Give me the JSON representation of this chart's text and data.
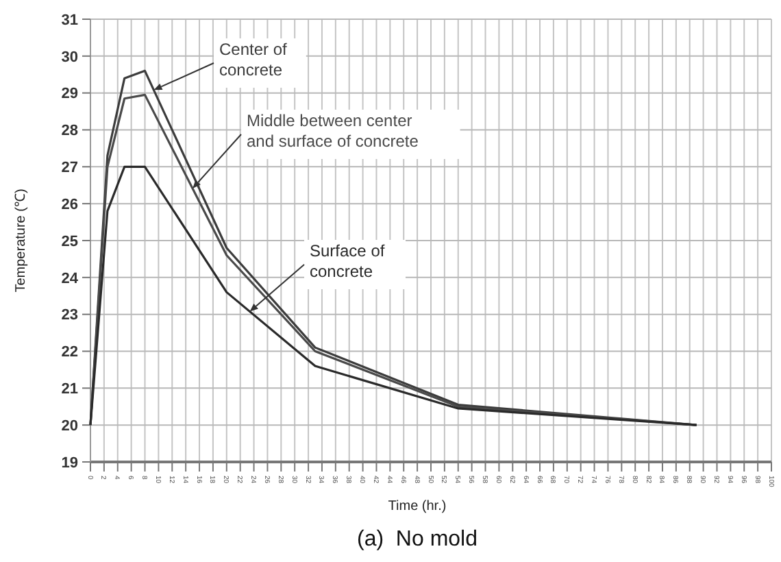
{
  "chart_data": {
    "type": "line",
    "title": "(a)  No mold",
    "xlabel": "Time (hr.)",
    "ylabel": "Temperature (℃)",
    "xlim": [
      0,
      100
    ],
    "xticks": [
      0,
      2,
      4,
      6,
      8,
      10,
      12,
      14,
      16,
      18,
      20,
      22,
      24,
      26,
      28,
      30,
      32,
      34,
      36,
      38,
      40,
      42,
      44,
      46,
      48,
      50,
      52,
      54,
      56,
      58,
      60,
      62,
      64,
      66,
      68,
      70,
      72,
      74,
      76,
      78,
      80,
      82,
      84,
      86,
      88,
      90,
      92,
      94,
      96,
      98,
      100
    ],
    "ylim": [
      19,
      31
    ],
    "yticks": [
      19,
      20,
      21,
      22,
      23,
      24,
      25,
      26,
      27,
      28,
      29,
      30,
      31
    ],
    "grid": true,
    "marker": "none",
    "x": [
      0,
      2.5,
      5,
      8,
      20,
      33,
      54,
      89
    ],
    "series": [
      {
        "name": "Center of concrete",
        "color": "#3c3c3c",
        "values": [
          20,
          27.3,
          29.4,
          29.6,
          24.8,
          22.1,
          20.55,
          20.0
        ]
      },
      {
        "name": "Middle between center and surface of concrete",
        "color": "#4a4a4a",
        "values": [
          20,
          27.0,
          28.85,
          28.95,
          24.6,
          22.0,
          20.5,
          20.0
        ]
      },
      {
        "name": "Surface of concrete",
        "color": "#2a2a2a",
        "values": [
          20,
          25.8,
          27.0,
          27.0,
          23.6,
          21.6,
          20.45,
          20.0
        ]
      }
    ]
  }
}
